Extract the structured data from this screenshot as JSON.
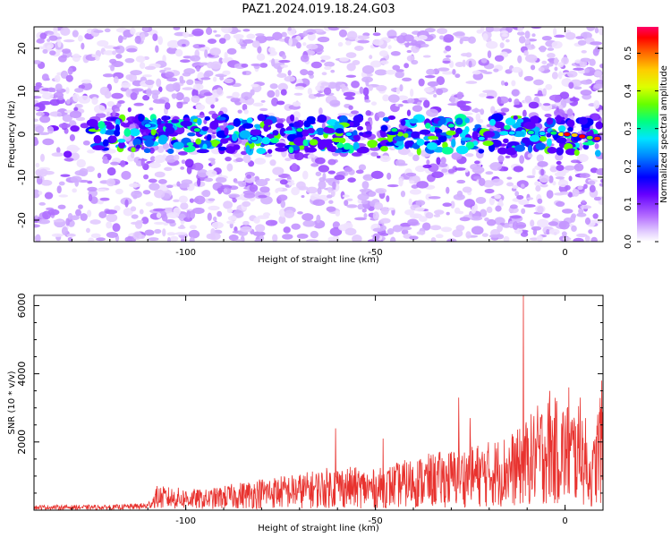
{
  "title": "PAZ1.2024.019.18.24.G03",
  "chart_data": [
    {
      "type": "heatmap",
      "xlabel": "Height of straight line (km)",
      "ylabel": "Frequency (Hz)",
      "xlim": [
        -140,
        10
      ],
      "ylim": [
        -25,
        25
      ],
      "x_ticks": [
        -100,
        -50,
        0
      ],
      "y_ticks": [
        -20,
        -10,
        0,
        10,
        20
      ],
      "colorbar": {
        "label": "Normalized spectral amplitude",
        "range": [
          0.0,
          0.57
        ],
        "ticks": [
          0.0,
          0.1,
          0.2,
          0.3,
          0.4,
          0.5
        ],
        "colormap": [
          "#ffffff",
          "#b36bff",
          "#6600ff",
          "#0000ff",
          "#00e5ff",
          "#00ff66",
          "#aaff00",
          "#ffff00",
          "#ff9900",
          "#ff0000",
          "#ff0066"
        ]
      },
      "ridge_center_hz": [
        {
          "x": -125,
          "y": 0
        },
        {
          "x": -100,
          "y": 0.5
        },
        {
          "x": -75,
          "y": 0
        },
        {
          "x": -50,
          "y": 0
        },
        {
          "x": -25,
          "y": 0
        },
        {
          "x": 0,
          "y": 0
        },
        {
          "x": 10,
          "y": -1
        }
      ]
    },
    {
      "type": "line",
      "xlabel": "Height of straight line (km)",
      "ylabel": "SNR (10 * v/v)",
      "xlim": [
        -140,
        10
      ],
      "ylim": [
        0,
        6300
      ],
      "x_ticks": [
        -100,
        -50,
        0
      ],
      "y_ticks": [
        2000,
        4000,
        6000
      ],
      "grid": false,
      "series": [
        {
          "color": "#e8322e",
          "envelope": [
            {
              "x": -140,
              "y": 150
            },
            {
              "x": -120,
              "y": 150
            },
            {
              "x": -110,
              "y": 220
            },
            {
              "x": -108,
              "y": 600
            },
            {
              "x": -95,
              "y": 500
            },
            {
              "x": -80,
              "y": 800
            },
            {
              "x": -70,
              "y": 900
            },
            {
              "x": -60,
              "y": 1100
            },
            {
              "x": -50,
              "y": 1000
            },
            {
              "x": -40,
              "y": 1300
            },
            {
              "x": -30,
              "y": 1500
            },
            {
              "x": -20,
              "y": 1700
            },
            {
              "x": -12,
              "y": 2000
            },
            {
              "x": -8,
              "y": 2500
            },
            {
              "x": -5,
              "y": 2800
            },
            {
              "x": 0,
              "y": 2700
            },
            {
              "x": 5,
              "y": 2500
            },
            {
              "x": 7,
              "y": 1400
            },
            {
              "x": 9,
              "y": 2900
            },
            {
              "x": 10,
              "y": 3300
            }
          ],
          "spikes": [
            {
              "x": -60.5,
              "y": 2400
            },
            {
              "x": -48,
              "y": 2100
            },
            {
              "x": -28,
              "y": 3300
            },
            {
              "x": -25,
              "y": 2700
            },
            {
              "x": -11,
              "y": 6300
            },
            {
              "x": -4,
              "y": 3500
            },
            {
              "x": 1,
              "y": 3600
            },
            {
              "x": 4,
              "y": 3300
            }
          ]
        }
      ]
    }
  ]
}
